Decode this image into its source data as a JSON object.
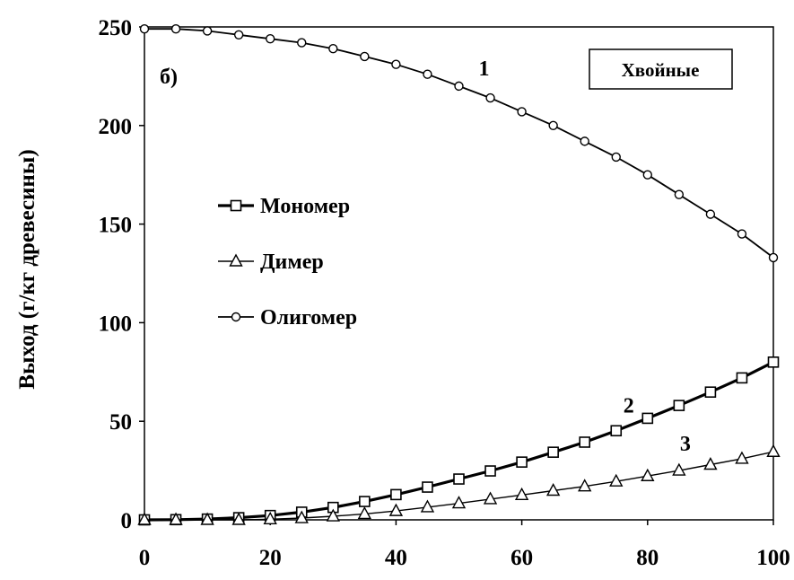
{
  "chart_data": {
    "type": "line",
    "panel_label": "б)",
    "group_label": "Хвойные",
    "ylabel": "Выход (г/кг древесины)",
    "xlabel": "",
    "xlim": [
      0,
      100
    ],
    "ylim": [
      0,
      250
    ],
    "x_ticks": [
      0,
      20,
      40,
      60,
      80,
      100
    ],
    "y_ticks": [
      0,
      50,
      100,
      150,
      200,
      250
    ],
    "x": [
      0,
      5,
      10,
      15,
      20,
      25,
      30,
      35,
      40,
      45,
      50,
      55,
      60,
      65,
      70,
      75,
      80,
      85,
      90,
      95,
      100
    ],
    "series": [
      {
        "name": "Мономер",
        "marker": "square",
        "curve_label": "2",
        "values": [
          0,
          0.1,
          0.4,
          1.1,
          2.2,
          3.9,
          6.3,
          9.3,
          12.8,
          16.6,
          20.7,
          24.8,
          29.3,
          34.3,
          39.4,
          45.2,
          51.5,
          58.0,
          64.8,
          72.0,
          80.0
        ]
      },
      {
        "name": "Димер",
        "marker": "triangle",
        "curve_label": "3",
        "values": [
          0,
          0,
          0,
          0,
          0.3,
          0.9,
          1.8,
          3.0,
          4.5,
          6.4,
          8.4,
          10.5,
          12.6,
          14.8,
          17.0,
          19.5,
          22.2,
          25.0,
          28.0,
          31.0,
          34.5
        ]
      },
      {
        "name": "Олигомер",
        "marker": "circle",
        "curve_label": "1",
        "values": [
          249,
          249,
          248,
          246,
          244,
          242,
          239,
          235,
          231,
          226,
          220,
          214,
          207,
          200,
          192,
          184,
          175,
          165,
          155,
          145,
          133
        ]
      }
    ],
    "legend_position": "middle-left",
    "grid": false
  }
}
